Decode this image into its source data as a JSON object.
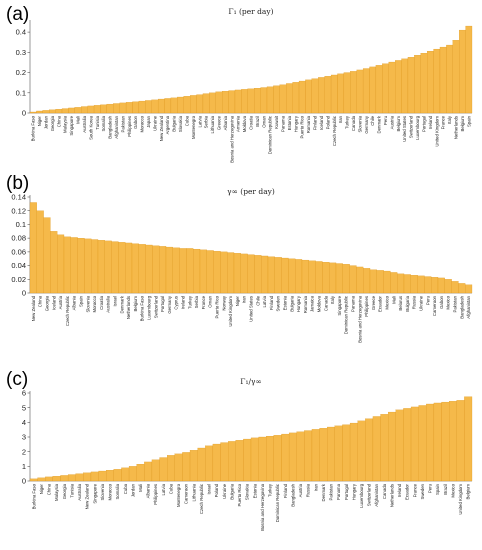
{
  "colors": {
    "bar": "#f5b94a",
    "bar_edge": "#d98f12"
  },
  "chart_data": [
    {
      "type": "bar",
      "panel": "(a)",
      "title": "Γ₁  (per day)",
      "ylim": [
        0,
        0.45
      ],
      "yticks": [
        0,
        0.1,
        0.2,
        0.3,
        0.4
      ],
      "ytick_labels": [
        "0",
        "0.1",
        "0.2",
        "0.3",
        "0.4"
      ],
      "categories": [
        "Burkina Faso",
        "Niger",
        "Jordan",
        "Georgia",
        "China",
        "Malaysia",
        "Singapore",
        "Mali",
        "Australia",
        "South Korea",
        "Tunisia",
        "Somalia",
        "Bangladesh",
        "Afghanistan",
        "Pakistan",
        "Philippines",
        "Gabon",
        "Morocco",
        "Japan",
        "Ukraine",
        "New Zealand",
        "Argentina",
        "Bulgaria",
        "Slovakia",
        "Cuba",
        "Montenegro",
        "Latvia",
        "Serbia",
        "Lithuania",
        "Greece",
        "Albania",
        "Bosnia and Herzegovina",
        "Armenia",
        "Moldova",
        "Croatia",
        "Brazil",
        "Oman",
        "Dominican Republic",
        "Kuwait",
        "Panama",
        "Estonia",
        "Hungary",
        "Puerto Rico",
        "Romania",
        "Finland",
        "Iceland",
        "Poland",
        "Czech Republic",
        "Iran",
        "Turkey",
        "Canada",
        "Slovenia",
        "Germany",
        "Chile",
        "Denmark",
        "Peru",
        "Austria",
        "Belgium",
        "United States",
        "Switzerland",
        "Luxembourg",
        "Portugal",
        "Ireland",
        "United Kingdom",
        "France",
        "Italy",
        "Netherlands",
        "Belgium",
        "Spain"
      ],
      "values": [
        0.005,
        0.01,
        0.013,
        0.016,
        0.019,
        0.022,
        0.025,
        0.028,
        0.032,
        0.035,
        0.038,
        0.041,
        0.044,
        0.047,
        0.05,
        0.053,
        0.056,
        0.059,
        0.062,
        0.065,
        0.069,
        0.072,
        0.075,
        0.079,
        0.083,
        0.087,
        0.091,
        0.096,
        0.1,
        0.105,
        0.108,
        0.111,
        0.114,
        0.117,
        0.12,
        0.123,
        0.126,
        0.13,
        0.135,
        0.14,
        0.146,
        0.152,
        0.158,
        0.164,
        0.17,
        0.176,
        0.182,
        0.188,
        0.194,
        0.2,
        0.206,
        0.213,
        0.22,
        0.228,
        0.236,
        0.244,
        0.252,
        0.26,
        0.268,
        0.276,
        0.286,
        0.296,
        0.306,
        0.316,
        0.326,
        0.336,
        0.36,
        0.41,
        0.43
      ]
    },
    {
      "type": "bar",
      "panel": "(b)",
      "title": "γ∞  (per day)",
      "ylim": [
        0,
        0.14
      ],
      "yticks": [
        0,
        0.02,
        0.04,
        0.06,
        0.08,
        0.1,
        0.12,
        0.14
      ],
      "ytick_labels": [
        "0",
        "0.02",
        "0.04",
        "0.06",
        "0.08",
        "0.1",
        "0.12",
        "0.14"
      ],
      "categories": [
        "New Zealand",
        "China",
        "Georgia",
        "Iceland",
        "Austria",
        "Czech Republic",
        "Albania",
        "Spain",
        "Slovenia",
        "Morocco",
        "Croatia",
        "Australia",
        "Israel",
        "Denmark",
        "Netherlands",
        "Belgium",
        "Burkina Faso",
        "Luxembourg",
        "Switzerland",
        "Portugal",
        "Germany",
        "Cyprus",
        "Ireland",
        "Turkey",
        "Serbia",
        "France",
        "Oman",
        "Puerto Rico",
        "Norway",
        "United Kingdom",
        "Niger",
        "Iran",
        "United States",
        "Chile",
        "Latvia",
        "Finland",
        "Sweden",
        "Estonia",
        "Bulgaria",
        "Hungary",
        "Romania",
        "Jamaica",
        "Moldova",
        "Canada",
        "Italy",
        "Singapore",
        "Dominican Republic",
        "Panama",
        "Bosnia and Herzegovina",
        "Philippines",
        "Greece",
        "Ecuador",
        "Mexico",
        "Mali",
        "Belarus",
        "Bulgaria",
        "Russia",
        "Ukraine",
        "Peru",
        "Cameroon",
        "Gabon",
        "Mexico",
        "Pakistan",
        "Bangladesh",
        "Afghanistan"
      ],
      "values": [
        0.132,
        0.12,
        0.11,
        0.09,
        0.085,
        0.082,
        0.081,
        0.08,
        0.079,
        0.078,
        0.077,
        0.076,
        0.075,
        0.074,
        0.073,
        0.072,
        0.071,
        0.07,
        0.069,
        0.068,
        0.067,
        0.066,
        0.065,
        0.065,
        0.064,
        0.063,
        0.062,
        0.061,
        0.06,
        0.059,
        0.058,
        0.057,
        0.056,
        0.055,
        0.054,
        0.053,
        0.052,
        0.051,
        0.05,
        0.049,
        0.048,
        0.047,
        0.046,
        0.045,
        0.044,
        0.043,
        0.042,
        0.04,
        0.038,
        0.036,
        0.034,
        0.033,
        0.032,
        0.03,
        0.028,
        0.027,
        0.026,
        0.025,
        0.024,
        0.023,
        0.022,
        0.02,
        0.017,
        0.014,
        0.012
      ]
    },
    {
      "type": "bar",
      "panel": "(c)",
      "title": "Γ₁/γ∞",
      "ylim": [
        0,
        6
      ],
      "yticks": [
        0,
        1,
        2,
        3,
        4,
        5,
        6
      ],
      "ytick_labels": [
        "0",
        "1",
        "2",
        "3",
        "4",
        "5",
        "6"
      ],
      "categories": [
        "Burkina Faso",
        "Niger",
        "China",
        "Malaysia",
        "Georgia",
        "Tunisia",
        "Australia",
        "New Zealand",
        "Singapore",
        "Slovenia",
        "Morocco",
        "Somalia",
        "Cuba",
        "Jordan",
        "Mali",
        "Albania",
        "Philippines",
        "Latvia",
        "Cuba",
        "Montenegro",
        "Cameroon",
        "Lithuania",
        "Czech Republic",
        "Israel",
        "Poland",
        "Ukraine",
        "Bulgaria",
        "Puerto Rico",
        "Slovakia",
        "Estonia",
        "Bosnia and Herzegovina",
        "Turkey",
        "Dominican Republic",
        "Finland",
        "Bangladesh",
        "Austria",
        "Russia",
        "Iran",
        "Denmark",
        "Pakistan",
        "Panama",
        "Portugal",
        "Hungary",
        "Luxembourg",
        "Switzerland",
        "Afghanistan",
        "Canada",
        "Netherlands",
        "Ireland",
        "Ecuador",
        "France",
        "Sweden",
        "Peru",
        "Spain",
        "Brazil",
        "Mexico",
        "United Kingdom",
        "Belgium"
      ],
      "values": [
        0.15,
        0.22,
        0.28,
        0.33,
        0.38,
        0.44,
        0.5,
        0.56,
        0.62,
        0.68,
        0.74,
        0.8,
        0.9,
        1.0,
        1.15,
        1.3,
        1.45,
        1.6,
        1.75,
        1.85,
        1.95,
        2.1,
        2.25,
        2.4,
        2.52,
        2.62,
        2.7,
        2.78,
        2.86,
        2.94,
        3.0,
        3.06,
        3.12,
        3.2,
        3.28,
        3.36,
        3.44,
        3.52,
        3.6,
        3.68,
        3.76,
        3.84,
        3.95,
        4.1,
        4.25,
        4.4,
        4.55,
        4.7,
        4.85,
        4.95,
        5.05,
        5.15,
        5.25,
        5.32,
        5.38,
        5.44,
        5.5,
        5.75
      ]
    }
  ]
}
